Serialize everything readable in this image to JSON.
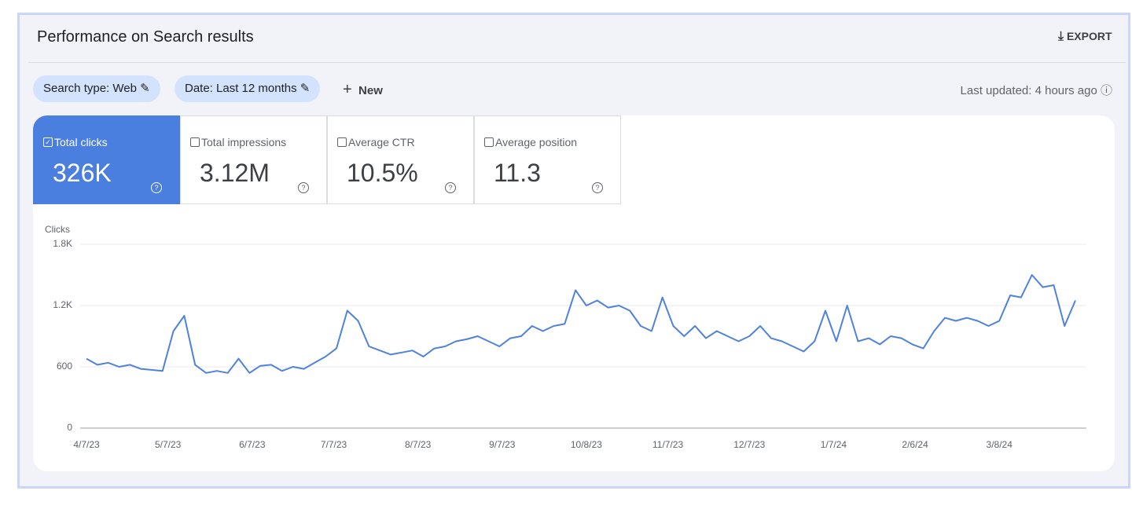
{
  "header": {
    "title": "Performance on Search results",
    "export": "EXPORT"
  },
  "filters": [
    "Search type: Web",
    "Date: Last 12 months"
  ],
  "new_button": "New",
  "last_updated": "Last updated: 4 hours ago",
  "metrics": [
    {
      "label": "Total clicks",
      "value": "326K"
    },
    {
      "label": "Total impressions",
      "value": "3.12M"
    },
    {
      "label": "Average CTR",
      "value": "10.5%"
    },
    {
      "label": "Average position",
      "value": "11.3"
    }
  ],
  "chart_data": {
    "type": "line",
    "y_label": "Clicks",
    "color": "#4f82dc",
    "x": [
      "4/7/23",
      "4/11/23",
      "4/15/23",
      "4/19/23",
      "4/23/23",
      "4/27/23",
      "5/1/23",
      "5/5/23",
      "5/9/23",
      "5/13/23",
      "5/17/23",
      "5/21/23",
      "5/25/23",
      "5/29/23",
      "6/2/23",
      "6/6/23",
      "6/10/23",
      "6/14/23",
      "6/18/23",
      "6/22/23",
      "6/26/23",
      "6/30/23",
      "7/4/23",
      "7/8/23",
      "7/12/23",
      "7/16/23",
      "7/20/23",
      "7/24/23",
      "7/28/23",
      "8/1/23",
      "8/5/23",
      "8/9/23",
      "8/13/23",
      "8/17/23",
      "8/21/23",
      "8/25/23",
      "8/29/23",
      "9/2/23",
      "9/6/23",
      "9/10/23",
      "9/14/23",
      "9/18/23",
      "9/22/23",
      "9/26/23",
      "9/30/23",
      "10/4/23",
      "10/8/23",
      "10/12/23",
      "10/16/23",
      "10/20/23",
      "10/24/23",
      "10/28/23",
      "11/1/23",
      "11/5/23",
      "11/9/23",
      "11/13/23",
      "11/17/23",
      "11/21/23",
      "11/25/23",
      "11/29/23",
      "12/3/23",
      "12/7/23",
      "12/11/23",
      "12/15/23",
      "12/19/23",
      "12/23/23",
      "12/27/23",
      "12/31/23",
      "1/4/24",
      "1/8/24",
      "1/12/24",
      "1/16/24",
      "1/20/24",
      "1/24/24",
      "1/28/24",
      "2/1/24",
      "2/5/24",
      "2/9/24",
      "2/13/24",
      "2/17/24",
      "2/21/24",
      "2/25/24",
      "2/29/24",
      "3/4/24",
      "3/8/24",
      "3/12/24",
      "3/16/24",
      "3/20/24",
      "3/24/24",
      "3/28/24",
      "4/1/24",
      "4/5/24"
    ],
    "values": [
      680,
      620,
      640,
      600,
      620,
      580,
      570,
      560,
      950,
      1100,
      620,
      540,
      560,
      540,
      680,
      540,
      610,
      620,
      560,
      600,
      580,
      640,
      700,
      780,
      1150,
      1050,
      800,
      760,
      720,
      740,
      760,
      700,
      780,
      800,
      850,
      870,
      900,
      850,
      800,
      880,
      900,
      1000,
      950,
      1000,
      1020,
      1350,
      1200,
      1250,
      1180,
      1200,
      1150,
      1000,
      950,
      1280,
      1000,
      900,
      1000,
      880,
      950,
      900,
      850,
      900,
      1000,
      880,
      850,
      800,
      750,
      850,
      1150,
      850,
      1200,
      850,
      880,
      820,
      900,
      880,
      820,
      780,
      950,
      1080,
      1050,
      1080,
      1050,
      1000,
      1050,
      1300,
      1280,
      1500,
      1380,
      1400,
      1000,
      1250
    ],
    "ylim": [
      0,
      1800
    ],
    "yticks": [
      0,
      600,
      {
        "value": 1200,
        "label": "1.2K"
      },
      {
        "value": 1800,
        "label": "1.8K"
      }
    ],
    "xticks": [
      "4/7/23",
      "5/7/23",
      "6/7/23",
      "7/7/23",
      "8/7/23",
      "9/7/23",
      "10/8/23",
      "11/7/23",
      "12/7/23",
      "1/7/24",
      "2/6/24",
      "3/8/24"
    ],
    "grid": true
  }
}
